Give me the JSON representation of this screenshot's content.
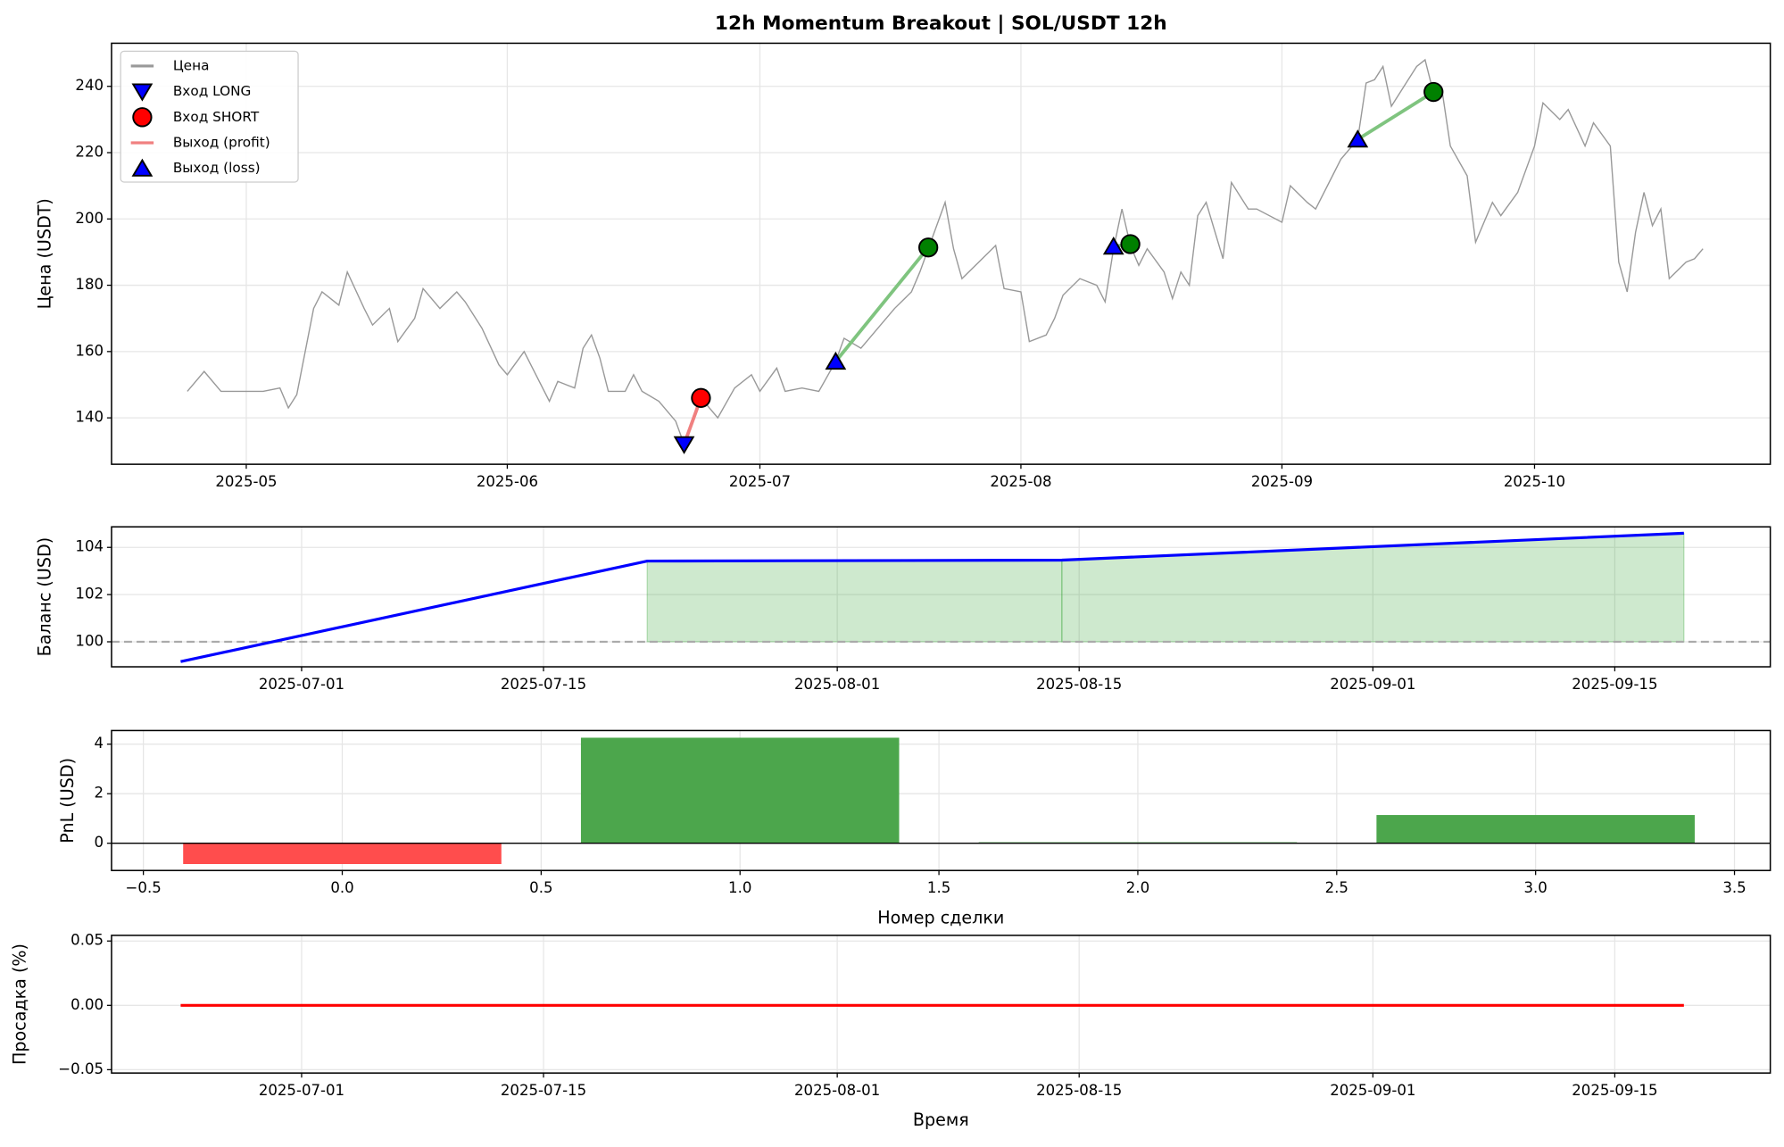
{
  "chart_data": [
    {
      "type": "line",
      "title": "12h Momentum Breakout | SOL/USDT 12h",
      "ylabel": "Цена (USDT)",
      "xlim": [
        "2025-04-15",
        "2025-10-29"
      ],
      "ylim": [
        126,
        253
      ],
      "xticks": [
        {
          "value": "2025-05-01",
          "label": "2025-05"
        },
        {
          "value": "2025-06-01",
          "label": "2025-06"
        },
        {
          "value": "2025-07-01",
          "label": "2025-07"
        },
        {
          "value": "2025-08-01",
          "label": "2025-08"
        },
        {
          "value": "2025-09-01",
          "label": "2025-09"
        },
        {
          "value": "2025-10-01",
          "label": "2025-10"
        }
      ],
      "yticks": [
        140,
        160,
        180,
        200,
        220,
        240
      ],
      "grid": true,
      "x": [
        "2025-04-24",
        "2025-04-26",
        "2025-04-28",
        "2025-04-30",
        "2025-05-03",
        "2025-05-05",
        "2025-05-06",
        "2025-05-07",
        "2025-05-09",
        "2025-05-10",
        "2025-05-12",
        "2025-05-13",
        "2025-05-15",
        "2025-05-16",
        "2025-05-18",
        "2025-05-19",
        "2025-05-21",
        "2025-05-22",
        "2025-05-24",
        "2025-05-26",
        "2025-05-27",
        "2025-05-29",
        "2025-05-31",
        "2025-06-01",
        "2025-06-03",
        "2025-06-04",
        "2025-06-06",
        "2025-06-07",
        "2025-06-09",
        "2025-06-10",
        "2025-06-11",
        "2025-06-12",
        "2025-06-13",
        "2025-06-15",
        "2025-06-16",
        "2025-06-17",
        "2025-06-19",
        "2025-06-21",
        "2025-06-22",
        "2025-06-24",
        "2025-06-26",
        "2025-06-28",
        "2025-06-30",
        "2025-07-01",
        "2025-07-03",
        "2025-07-04",
        "2025-07-06",
        "2025-07-08",
        "2025-07-10",
        "2025-07-11",
        "2025-07-13",
        "2025-07-15",
        "2025-07-17",
        "2025-07-19",
        "2025-07-20",
        "2025-07-21",
        "2025-07-23",
        "2025-07-24",
        "2025-07-25",
        "2025-07-27",
        "2025-07-29",
        "2025-07-30",
        "2025-08-01",
        "2025-08-02",
        "2025-08-04",
        "2025-08-05",
        "2025-08-06",
        "2025-08-08",
        "2025-08-10",
        "2025-08-11",
        "2025-08-12",
        "2025-08-13",
        "2025-08-14",
        "2025-08-15",
        "2025-08-16",
        "2025-08-18",
        "2025-08-19",
        "2025-08-20",
        "2025-08-21",
        "2025-08-22",
        "2025-08-23",
        "2025-08-25",
        "2025-08-26",
        "2025-08-28",
        "2025-08-29",
        "2025-09-01",
        "2025-09-02",
        "2025-09-04",
        "2025-09-05",
        "2025-09-07",
        "2025-09-08",
        "2025-09-10",
        "2025-09-11",
        "2025-09-12",
        "2025-09-13",
        "2025-09-14",
        "2025-09-16",
        "2025-09-17",
        "2025-09-18",
        "2025-09-19",
        "2025-09-20",
        "2025-09-21",
        "2025-09-23",
        "2025-09-24",
        "2025-09-26",
        "2025-09-27",
        "2025-09-29",
        "2025-10-01",
        "2025-10-02",
        "2025-10-04",
        "2025-10-05",
        "2025-10-07",
        "2025-10-08",
        "2025-10-10",
        "2025-10-11",
        "2025-10-12",
        "2025-10-13",
        "2025-10-14",
        "2025-10-15",
        "2025-10-16",
        "2025-10-17",
        "2025-10-19",
        "2025-10-20",
        "2025-10-21"
      ],
      "series": [
        {
          "name": "Цена",
          "color": "#999999",
          "values": [
            148,
            154,
            148,
            148,
            148,
            149,
            143,
            147,
            173,
            178,
            174,
            184,
            173,
            168,
            173,
            163,
            170,
            179,
            173,
            178,
            175,
            167,
            156,
            153,
            160,
            155,
            145,
            151,
            149,
            161,
            165,
            158,
            148,
            148,
            153,
            148,
            145,
            139,
            132,
            146,
            140,
            149,
            153,
            148,
            155,
            148,
            149,
            148,
            157,
            164,
            161,
            167,
            173,
            178,
            184,
            191,
            205,
            191,
            182,
            187,
            192,
            179,
            178,
            163,
            165,
            170,
            177,
            182,
            180,
            175,
            191,
            203,
            192,
            186,
            191,
            184,
            176,
            184,
            180,
            201,
            205,
            188,
            211,
            203,
            203,
            199,
            210,
            205,
            203,
            213,
            218,
            224,
            241,
            242,
            246,
            234,
            242,
            246,
            248,
            238,
            239,
            222,
            213,
            193,
            205,
            201,
            208,
            222,
            235,
            230,
            233,
            222,
            229,
            222,
            187,
            178,
            196,
            208,
            198,
            203,
            182,
            187,
            188,
            191
          ]
        }
      ],
      "trades": [
        {
          "entry_date": "2025-06-22",
          "entry_price": 132,
          "exit_date": "2025-06-24",
          "exit_price": 146,
          "entry_marker": "triangle-down",
          "entry_color": "#0000ff",
          "exit_marker": "circle",
          "exit_color": "#ff0000",
          "line_color": "#f08080"
        },
        {
          "entry_date": "2025-07-10",
          "entry_price": 157,
          "exit_date": "2025-07-21",
          "exit_price": 191.4,
          "entry_marker": "triangle-up",
          "entry_color": "#0000ff",
          "exit_marker": "circle",
          "exit_color": "#008000",
          "line_color": "#7fc47f"
        },
        {
          "entry_date": "2025-08-12",
          "entry_price": 191.7,
          "exit_date": "2025-08-14",
          "exit_price": 192.4,
          "entry_marker": "triangle-up",
          "entry_color": "#0000ff",
          "exit_marker": "circle",
          "exit_color": "#008000",
          "line_color": "#7fc47f"
        },
        {
          "entry_date": "2025-09-10",
          "entry_price": 224,
          "exit_date": "2025-09-19",
          "exit_price": 238.3,
          "entry_marker": "triangle-up",
          "entry_color": "#0000ff",
          "exit_marker": "circle",
          "exit_color": "#008000",
          "line_color": "#7fc47f"
        }
      ],
      "legend": [
        {
          "label": "Цена",
          "marker": "line",
          "color": "#999999"
        },
        {
          "label": "Вход LONG",
          "marker": "triangle-down",
          "color": "#0000ff"
        },
        {
          "label": "Вход SHORT",
          "marker": "circle",
          "color": "#ff0000"
        },
        {
          "label": "Выход (profit)",
          "marker": "line",
          "color": "#f08080"
        },
        {
          "label": "Выход (loss)",
          "marker": "triangle-up",
          "color": "#0000ff"
        }
      ],
      "legend_position": "upper left"
    },
    {
      "type": "line",
      "ylabel": "Баланс (USD)",
      "xlim": [
        "2025-06-20",
        "2025-09-24"
      ],
      "ylim": [
        98.94,
        104.87
      ],
      "xticks": [
        "2025-07-01",
        "2025-07-15",
        "2025-08-01",
        "2025-08-15",
        "2025-09-01",
        "2025-09-15"
      ],
      "yticks": [
        100,
        102,
        104
      ],
      "grid": true,
      "x": [
        "2025-06-24",
        "2025-07-21",
        "2025-08-14",
        "2025-09-19"
      ],
      "series": [
        {
          "color": "#0000ff",
          "values": [
            99.16,
            103.42,
            103.46,
            104.6
          ]
        }
      ],
      "baseline": 100,
      "fill_color": "#2ca02c"
    },
    {
      "type": "bar",
      "ylabel": "PnL (USD)",
      "xlabel": "Номер сделки",
      "xlim": [
        -0.58,
        3.59
      ],
      "ylim": [
        -1.1,
        4.55
      ],
      "xticks": [
        {
          "value": -0.5,
          "label": "−0.5"
        },
        {
          "value": 0,
          "label": "0.0"
        },
        0.5,
        {
          "value": 1,
          "label": "1.0"
        },
        1.5,
        {
          "value": 2,
          "label": "2.0"
        },
        2.5,
        {
          "value": 3,
          "label": "3.0"
        },
        3.5
      ],
      "yticks": [
        0,
        2,
        4
      ],
      "grid": true,
      "bar_width": 0.8,
      "x": [
        0,
        1,
        2,
        3
      ],
      "values": [
        -0.84,
        4.26,
        0.04,
        1.14
      ],
      "colors": [
        "#ff4d4d",
        "#4ca64c",
        "#4ca64c",
        "#4ca64c"
      ]
    },
    {
      "type": "line",
      "ylabel": "Просадка (%)",
      "xlabel": "Время",
      "xlim": [
        "2025-06-20",
        "2025-09-24"
      ],
      "ylim": [
        -0.0526,
        0.0544
      ],
      "xticks": [
        "2025-07-01",
        "2025-07-15",
        "2025-08-01",
        "2025-08-15",
        "2025-09-01",
        "2025-09-15"
      ],
      "yticks": [
        {
          "value": -0.05,
          "label": "−0.05"
        },
        {
          "value": 0,
          "label": "0.00"
        },
        0.05
      ],
      "grid": true,
      "x": [
        "2025-06-24",
        "2025-07-21",
        "2025-08-14",
        "2025-09-19"
      ],
      "series": [
        {
          "color": "#ff0000",
          "values": [
            0,
            0,
            0,
            0
          ]
        }
      ]
    }
  ]
}
